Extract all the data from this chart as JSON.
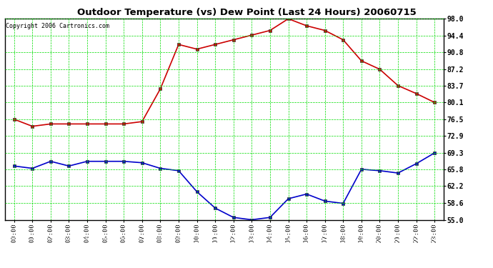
{
  "title": "Outdoor Temperature (vs) Dew Point (Last 24 Hours) 20060715",
  "copyright": "Copyright 2006 Cartronics.com",
  "x_labels": [
    "00:00",
    "01:00",
    "02:00",
    "03:00",
    "04:00",
    "05:00",
    "06:00",
    "07:00",
    "08:00",
    "09:00",
    "10:00",
    "11:00",
    "12:00",
    "13:00",
    "14:00",
    "15:00",
    "16:00",
    "17:00",
    "18:00",
    "19:00",
    "20:00",
    "21:00",
    "22:00",
    "23:00"
  ],
  "temp_data": [
    76.5,
    75.0,
    75.5,
    75.5,
    75.5,
    75.5,
    75.5,
    76.0,
    83.0,
    92.5,
    91.5,
    92.5,
    93.5,
    94.5,
    95.5,
    98.0,
    96.5,
    95.5,
    93.5,
    89.0,
    87.2,
    83.7,
    82.0,
    80.1
  ],
  "dew_data": [
    66.5,
    66.0,
    67.5,
    66.5,
    67.5,
    67.5,
    67.5,
    67.2,
    66.0,
    65.5,
    61.0,
    57.5,
    55.5,
    55.0,
    55.5,
    59.5,
    60.5,
    59.0,
    58.5,
    65.8,
    65.5,
    65.0,
    67.0,
    69.3
  ],
  "temp_color": "#cc0000",
  "dew_color": "#0000cc",
  "bg_color": "#ffffff",
  "plot_bg_color": "#ffffff",
  "grid_color": "#00dd00",
  "title_color": "#000000",
  "yticks": [
    55.0,
    58.6,
    62.2,
    65.8,
    69.3,
    72.9,
    76.5,
    80.1,
    83.7,
    87.2,
    90.8,
    94.4,
    98.0
  ],
  "ymin": 55.0,
  "ymax": 98.0,
  "marker": "s",
  "marker_size": 2.5,
  "linewidth": 1.2
}
